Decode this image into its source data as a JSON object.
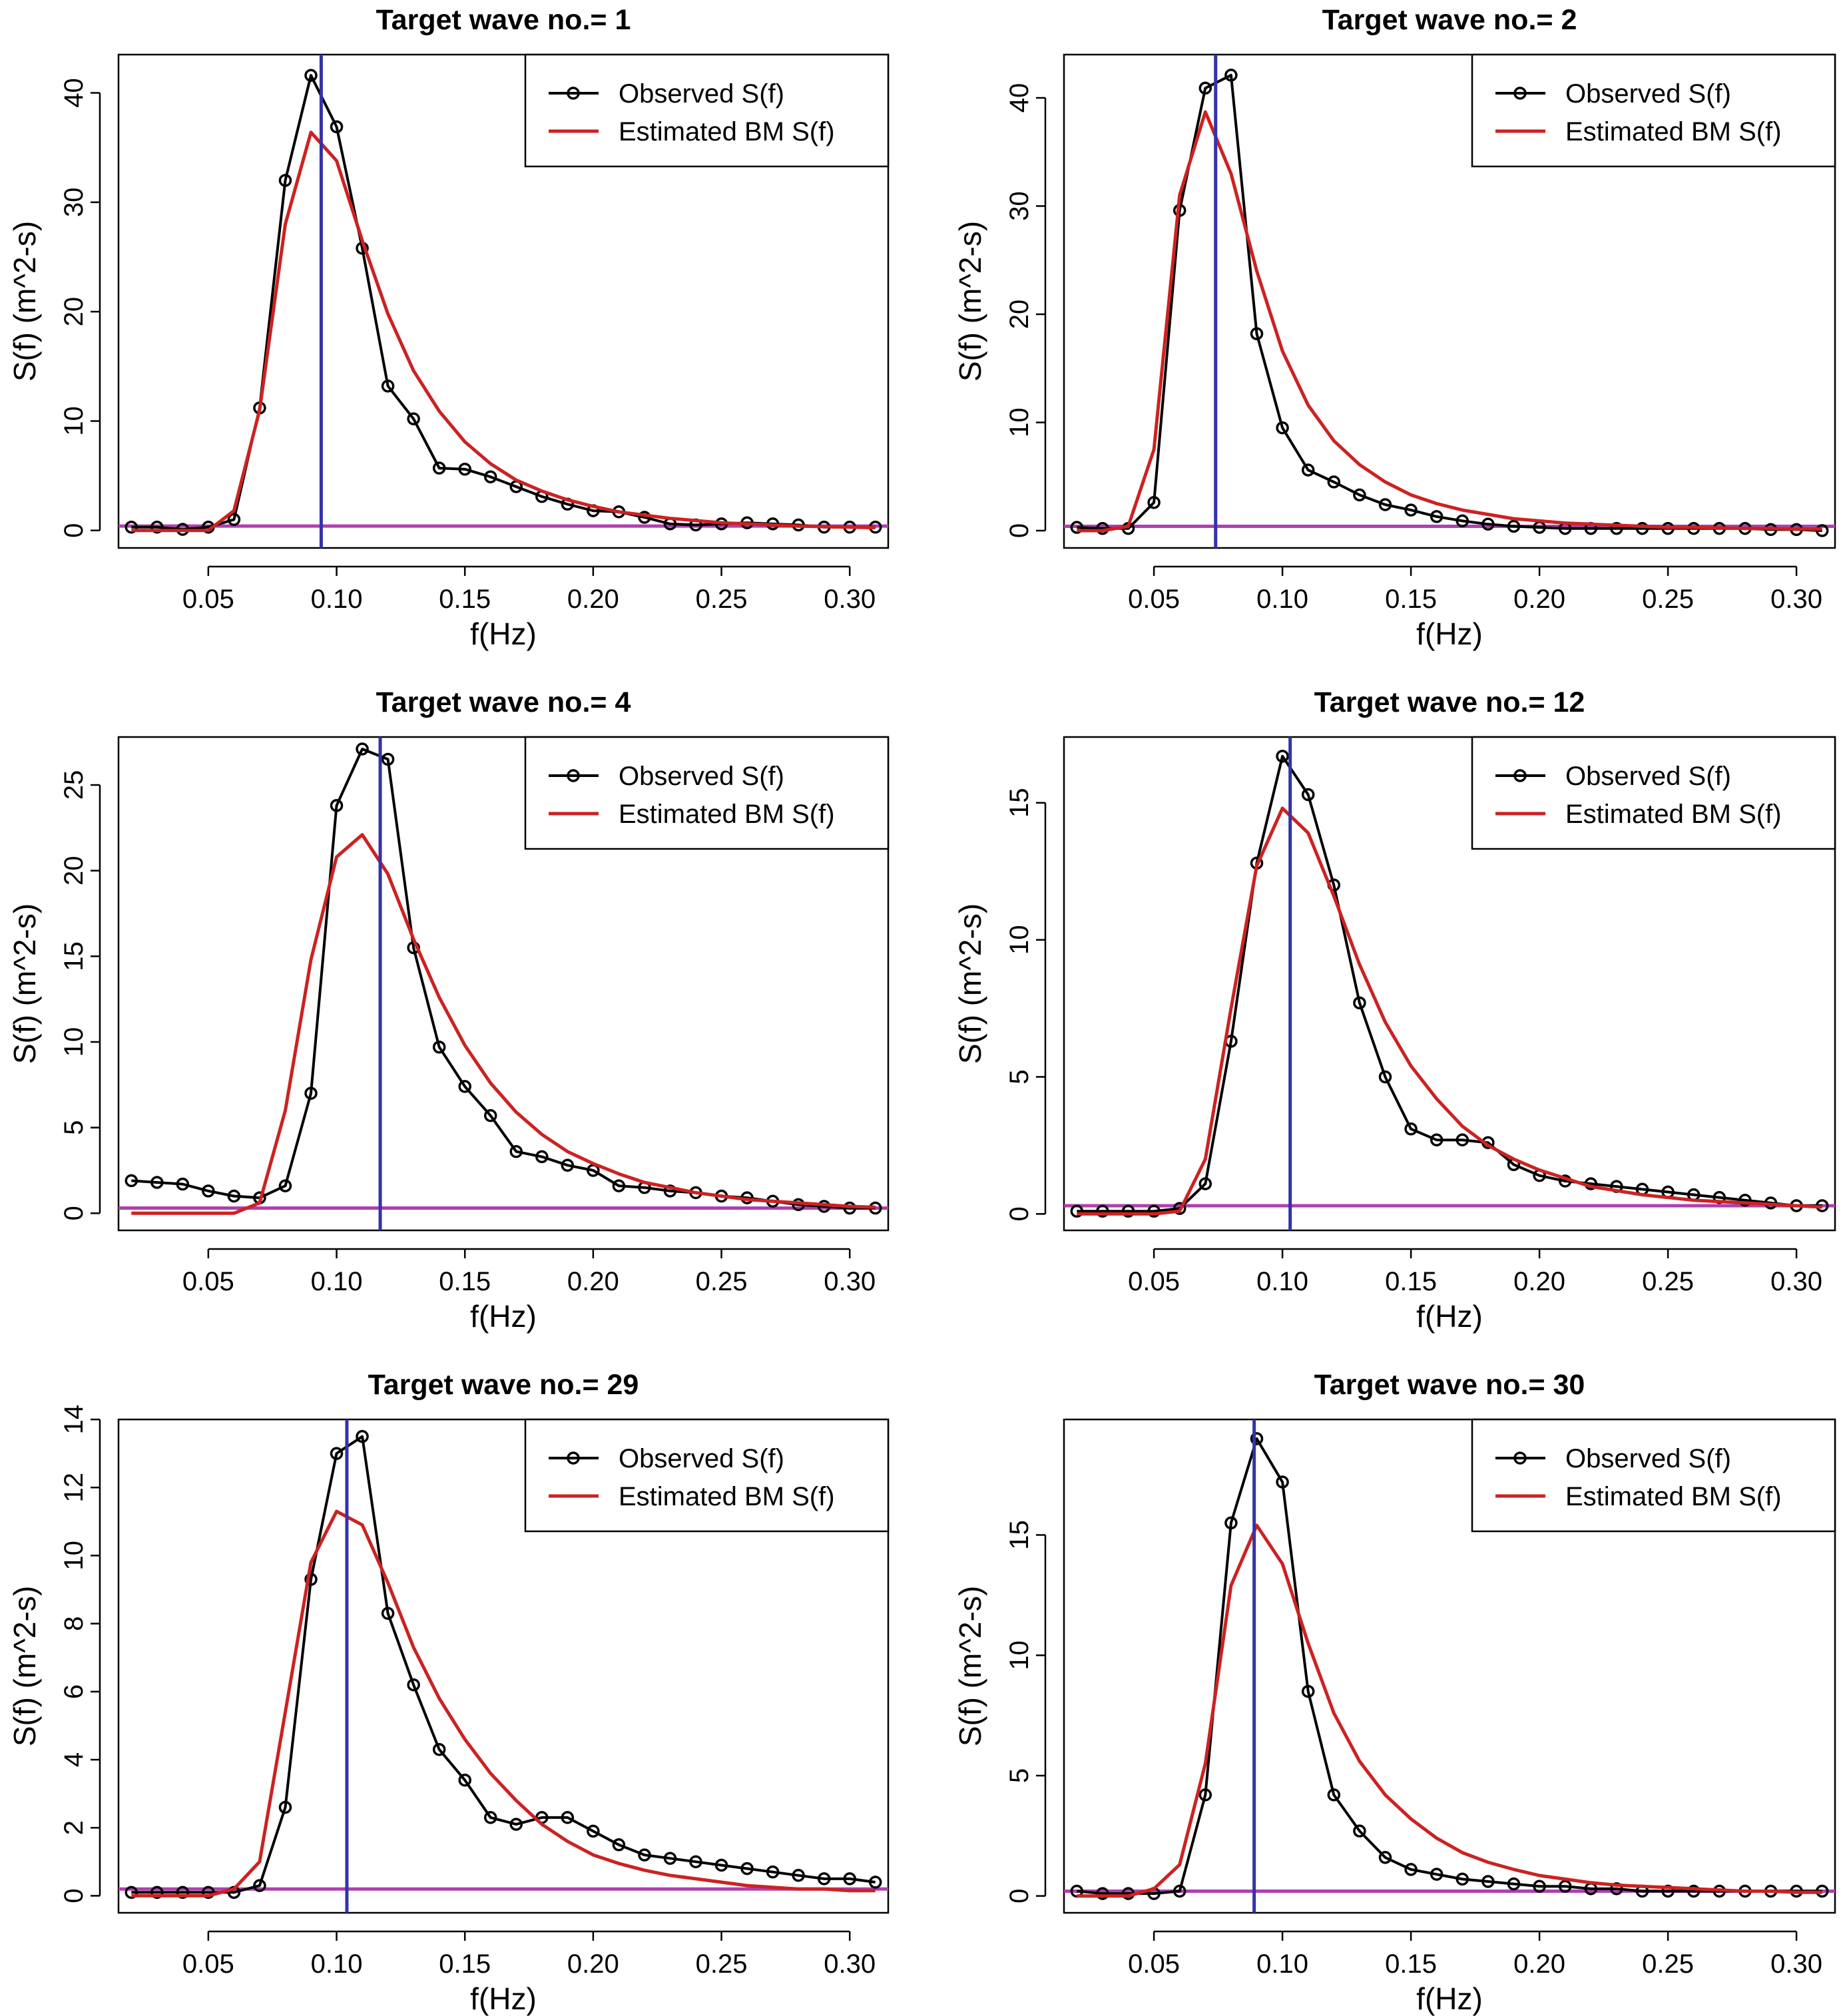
{
  "figure": {
    "colors": {
      "observed": "#000000",
      "estimated": "#cc2222",
      "peak_line": "#3333aa",
      "threshold_line": "#b040b0",
      "axis": "#000000"
    }
  },
  "chart_data": [
    {
      "type": "line",
      "title": "Target wave no.= 1",
      "xlabel": "f(Hz)",
      "ylabel": "S(f) (m^2-s)",
      "xlim": [
        0.015,
        0.315
      ],
      "ylim": [
        -1.6,
        43.5
      ],
      "xticks": [
        0.05,
        0.1,
        0.15,
        0.2,
        0.25,
        0.3
      ],
      "xtick_labels": [
        "0.05",
        "0.10",
        "0.15",
        "0.20",
        "0.25",
        "0.30"
      ],
      "yticks": [
        0,
        10,
        20,
        30,
        40
      ],
      "ytick_labels": [
        "0",
        "10",
        "20",
        "30",
        "40"
      ],
      "legend": [
        "Observed S(f)",
        "Estimated BM S(f)"
      ],
      "legend_position": "top-right",
      "x": [
        0.02,
        0.03,
        0.04,
        0.05,
        0.06,
        0.07,
        0.08,
        0.09,
        0.1,
        0.11,
        0.12,
        0.13,
        0.14,
        0.15,
        0.16,
        0.17,
        0.18,
        0.19,
        0.2,
        0.21,
        0.22,
        0.23,
        0.24,
        0.25,
        0.26,
        0.27,
        0.28,
        0.29,
        0.3,
        0.31
      ],
      "series": [
        {
          "name": "Observed S(f)",
          "markers": true,
          "values": [
            0.3,
            0.3,
            0.1,
            0.3,
            1.0,
            11.2,
            32.0,
            41.6,
            36.9,
            25.8,
            13.2,
            10.2,
            5.7,
            5.6,
            4.9,
            4.0,
            3.1,
            2.4,
            1.8,
            1.7,
            1.2,
            0.6,
            0.5,
            0.6,
            0.7,
            0.6,
            0.5,
            0.3,
            0.3,
            0.3
          ]
        },
        {
          "name": "Estimated BM S(f)",
          "markers": false,
          "values": [
            0.0,
            0.0,
            0.0,
            0.0,
            1.8,
            11.0,
            28.0,
            36.4,
            33.8,
            26.5,
            19.8,
            14.6,
            10.9,
            8.1,
            6.1,
            4.6,
            3.6,
            2.8,
            2.2,
            1.7,
            1.4,
            1.1,
            0.9,
            0.7,
            0.6,
            0.5,
            0.4,
            0.35,
            0.3,
            0.25
          ]
        }
      ],
      "vline_x": 0.094,
      "hline_y": 0.4
    },
    {
      "type": "line",
      "title": "Target wave no.= 2",
      "xlabel": "f(Hz)",
      "ylabel": "S(f) (m^2-s)",
      "xlim": [
        0.015,
        0.315
      ],
      "ylim": [
        -1.6,
        44.0
      ],
      "xticks": [
        0.05,
        0.1,
        0.15,
        0.2,
        0.25,
        0.3
      ],
      "xtick_labels": [
        "0.05",
        "0.10",
        "0.15",
        "0.20",
        "0.25",
        "0.30"
      ],
      "yticks": [
        0,
        10,
        20,
        30,
        40
      ],
      "ytick_labels": [
        "0",
        "10",
        "20",
        "30",
        "40"
      ],
      "legend": [
        "Observed S(f)",
        "Estimated BM S(f)"
      ],
      "legend_position": "top-right",
      "x": [
        0.02,
        0.03,
        0.04,
        0.05,
        0.06,
        0.07,
        0.08,
        0.09,
        0.1,
        0.11,
        0.12,
        0.13,
        0.14,
        0.15,
        0.16,
        0.17,
        0.18,
        0.19,
        0.2,
        0.21,
        0.22,
        0.23,
        0.24,
        0.25,
        0.26,
        0.27,
        0.28,
        0.29,
        0.3,
        0.31
      ],
      "series": [
        {
          "name": "Observed S(f)",
          "markers": true,
          "values": [
            0.3,
            0.2,
            0.2,
            2.6,
            29.6,
            40.9,
            42.1,
            18.2,
            9.5,
            5.6,
            4.5,
            3.3,
            2.4,
            1.9,
            1.3,
            0.9,
            0.6,
            0.4,
            0.3,
            0.2,
            0.2,
            0.2,
            0.2,
            0.2,
            0.2,
            0.2,
            0.2,
            0.1,
            0.1,
            0.0
          ]
        },
        {
          "name": "Estimated BM S(f)",
          "markers": false,
          "values": [
            0.0,
            0.0,
            0.4,
            7.5,
            31.0,
            38.7,
            33.0,
            24.0,
            16.6,
            11.6,
            8.3,
            6.1,
            4.5,
            3.3,
            2.5,
            1.9,
            1.5,
            1.1,
            0.9,
            0.7,
            0.6,
            0.5,
            0.4,
            0.3,
            0.3,
            0.25,
            0.2,
            0.2,
            0.15,
            0.15
          ]
        }
      ],
      "vline_x": 0.074,
      "hline_y": 0.4
    },
    {
      "type": "line",
      "title": "Target wave no.= 4",
      "xlabel": "f(Hz)",
      "ylabel": "S(f) (m^2-s)",
      "xlim": [
        0.015,
        0.315
      ],
      "ylim": [
        -1.0,
        27.8
      ],
      "xticks": [
        0.05,
        0.1,
        0.15,
        0.2,
        0.25,
        0.3
      ],
      "xtick_labels": [
        "0.05",
        "0.10",
        "0.15",
        "0.20",
        "0.25",
        "0.30"
      ],
      "yticks": [
        0,
        5,
        10,
        15,
        20,
        25
      ],
      "ytick_labels": [
        "0",
        "5",
        "10",
        "15",
        "20",
        "25"
      ],
      "legend": [
        "Observed S(f)",
        "Estimated BM S(f)"
      ],
      "legend_position": "top-right",
      "x": [
        0.02,
        0.03,
        0.04,
        0.05,
        0.06,
        0.07,
        0.08,
        0.09,
        0.1,
        0.11,
        0.12,
        0.13,
        0.14,
        0.15,
        0.16,
        0.17,
        0.18,
        0.19,
        0.2,
        0.21,
        0.22,
        0.23,
        0.24,
        0.25,
        0.26,
        0.27,
        0.28,
        0.29,
        0.3,
        0.31
      ],
      "series": [
        {
          "name": "Observed S(f)",
          "markers": true,
          "values": [
            1.9,
            1.8,
            1.7,
            1.3,
            1.0,
            0.9,
            1.6,
            7.0,
            23.8,
            27.1,
            26.5,
            15.5,
            9.7,
            7.4,
            5.7,
            3.6,
            3.3,
            2.8,
            2.5,
            1.6,
            1.5,
            1.3,
            1.2,
            1.0,
            0.9,
            0.7,
            0.5,
            0.4,
            0.3,
            0.3
          ]
        },
        {
          "name": "Estimated BM S(f)",
          "markers": false,
          "values": [
            0.0,
            0.0,
            0.0,
            0.0,
            0.0,
            0.6,
            6.0,
            14.8,
            20.8,
            22.1,
            19.8,
            16.0,
            12.6,
            9.8,
            7.6,
            5.9,
            4.6,
            3.6,
            2.9,
            2.3,
            1.8,
            1.5,
            1.2,
            1.0,
            0.8,
            0.7,
            0.6,
            0.5,
            0.4,
            0.35
          ]
        }
      ],
      "vline_x": 0.117,
      "hline_y": 0.3
    },
    {
      "type": "line",
      "title": "Target wave no.= 12",
      "xlabel": "f(Hz)",
      "ylabel": "S(f) (m^2-s)",
      "xlim": [
        0.015,
        0.315
      ],
      "ylim": [
        -0.6,
        17.4
      ],
      "xticks": [
        0.05,
        0.1,
        0.15,
        0.2,
        0.25,
        0.3
      ],
      "xtick_labels": [
        "0.05",
        "0.10",
        "0.15",
        "0.20",
        "0.25",
        "0.30"
      ],
      "yticks": [
        0,
        5,
        10,
        15
      ],
      "ytick_labels": [
        "0",
        "5",
        "10",
        "15"
      ],
      "legend": [
        "Observed S(f)",
        "Estimated BM S(f)"
      ],
      "legend_position": "top-right",
      "x": [
        0.02,
        0.03,
        0.04,
        0.05,
        0.06,
        0.07,
        0.08,
        0.09,
        0.1,
        0.11,
        0.12,
        0.13,
        0.14,
        0.15,
        0.16,
        0.17,
        0.18,
        0.19,
        0.2,
        0.21,
        0.22,
        0.23,
        0.24,
        0.25,
        0.26,
        0.27,
        0.28,
        0.29,
        0.3,
        0.31
      ],
      "series": [
        {
          "name": "Observed S(f)",
          "markers": true,
          "values": [
            0.1,
            0.1,
            0.1,
            0.1,
            0.2,
            1.1,
            6.3,
            12.8,
            16.7,
            15.3,
            12.0,
            7.7,
            5.0,
            3.1,
            2.7,
            2.7,
            2.6,
            1.8,
            1.4,
            1.2,
            1.1,
            1.0,
            0.9,
            0.8,
            0.7,
            0.6,
            0.5,
            0.4,
            0.3,
            0.3
          ]
        },
        {
          "name": "Estimated BM S(f)",
          "markers": false,
          "values": [
            0.0,
            0.0,
            0.0,
            0.0,
            0.1,
            2.0,
            7.5,
            12.7,
            14.8,
            13.9,
            11.6,
            9.1,
            7.0,
            5.4,
            4.2,
            3.2,
            2.5,
            2.0,
            1.6,
            1.3,
            1.0,
            0.85,
            0.7,
            0.6,
            0.5,
            0.45,
            0.4,
            0.35,
            0.3,
            0.25
          ]
        }
      ],
      "vline_x": 0.103,
      "hline_y": 0.3
    },
    {
      "type": "line",
      "title": "Target wave no.= 29",
      "xlabel": "f(Hz)",
      "ylabel": "S(f) (m^2-s)",
      "xlim": [
        0.015,
        0.315
      ],
      "ylim": [
        -0.5,
        14.0
      ],
      "xticks": [
        0.05,
        0.1,
        0.15,
        0.2,
        0.25,
        0.3
      ],
      "xtick_labels": [
        "0.05",
        "0.10",
        "0.15",
        "0.20",
        "0.25",
        "0.30"
      ],
      "yticks": [
        0,
        2,
        4,
        6,
        8,
        10,
        12,
        14
      ],
      "ytick_labels": [
        "0",
        "2",
        "4",
        "6",
        "8",
        "10",
        "12",
        "14"
      ],
      "legend": [
        "Observed S(f)",
        "Estimated BM S(f)"
      ],
      "legend_position": "top-right",
      "x": [
        0.02,
        0.03,
        0.04,
        0.05,
        0.06,
        0.07,
        0.08,
        0.09,
        0.1,
        0.11,
        0.12,
        0.13,
        0.14,
        0.15,
        0.16,
        0.17,
        0.18,
        0.19,
        0.2,
        0.21,
        0.22,
        0.23,
        0.24,
        0.25,
        0.26,
        0.27,
        0.28,
        0.29,
        0.3,
        0.31
      ],
      "series": [
        {
          "name": "Observed S(f)",
          "markers": true,
          "values": [
            0.1,
            0.1,
            0.1,
            0.1,
            0.1,
            0.3,
            2.6,
            9.3,
            13.0,
            13.5,
            8.3,
            6.2,
            4.3,
            3.4,
            2.3,
            2.1,
            2.3,
            2.3,
            1.9,
            1.5,
            1.2,
            1.1,
            1.0,
            0.9,
            0.8,
            0.7,
            0.6,
            0.5,
            0.5,
            0.4
          ]
        },
        {
          "name": "Estimated BM S(f)",
          "markers": false,
          "values": [
            0.0,
            0.0,
            0.0,
            0.0,
            0.2,
            1.0,
            5.4,
            9.8,
            11.3,
            10.9,
            9.2,
            7.3,
            5.8,
            4.6,
            3.6,
            2.8,
            2.1,
            1.6,
            1.2,
            0.95,
            0.75,
            0.6,
            0.5,
            0.4,
            0.3,
            0.25,
            0.2,
            0.2,
            0.15,
            0.15
          ]
        }
      ],
      "vline_x": 0.104,
      "hline_y": 0.2
    },
    {
      "type": "line",
      "title": "Target wave no.= 30",
      "xlabel": "f(Hz)",
      "ylabel": "S(f) (m^2-s)",
      "xlim": [
        0.015,
        0.315
      ],
      "ylim": [
        -0.7,
        19.8
      ],
      "xticks": [
        0.05,
        0.1,
        0.15,
        0.2,
        0.25,
        0.3
      ],
      "xtick_labels": [
        "0.05",
        "0.10",
        "0.15",
        "0.20",
        "0.25",
        "0.30"
      ],
      "yticks": [
        0,
        5,
        10,
        15
      ],
      "ytick_labels": [
        "0",
        "5",
        "10",
        "15"
      ],
      "legend": [
        "Observed S(f)",
        "Estimated BM S(f)"
      ],
      "legend_position": "top-right",
      "x": [
        0.02,
        0.03,
        0.04,
        0.05,
        0.06,
        0.07,
        0.08,
        0.09,
        0.1,
        0.11,
        0.12,
        0.13,
        0.14,
        0.15,
        0.16,
        0.17,
        0.18,
        0.19,
        0.2,
        0.21,
        0.22,
        0.23,
        0.24,
        0.25,
        0.26,
        0.27,
        0.28,
        0.29,
        0.3,
        0.31
      ],
      "series": [
        {
          "name": "Observed S(f)",
          "markers": true,
          "values": [
            0.2,
            0.1,
            0.1,
            0.1,
            0.2,
            4.2,
            15.5,
            19.0,
            17.2,
            8.5,
            4.2,
            2.7,
            1.6,
            1.1,
            0.9,
            0.7,
            0.6,
            0.5,
            0.4,
            0.4,
            0.3,
            0.3,
            0.2,
            0.2,
            0.2,
            0.2,
            0.2,
            0.2,
            0.2,
            0.2
          ]
        },
        {
          "name": "Estimated BM S(f)",
          "markers": false,
          "values": [
            0.0,
            0.0,
            0.0,
            0.3,
            1.3,
            5.5,
            12.9,
            15.4,
            13.8,
            10.5,
            7.6,
            5.6,
            4.2,
            3.2,
            2.4,
            1.8,
            1.4,
            1.1,
            0.85,
            0.7,
            0.55,
            0.45,
            0.4,
            0.35,
            0.3,
            0.25,
            0.2,
            0.2,
            0.15,
            0.15
          ]
        }
      ],
      "vline_x": 0.089,
      "hline_y": 0.2
    }
  ]
}
